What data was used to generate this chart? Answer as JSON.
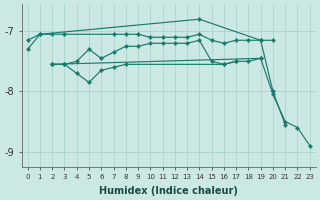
{
  "xlabel": "Humidex (Indice chaleur)",
  "bg_color": "#cce8e4",
  "grid_color": "#aad4cc",
  "line_color": "#1a7a6e",
  "ylim": [
    -9.25,
    -6.55
  ],
  "xlim": [
    -0.5,
    23.5
  ],
  "yticks": [
    -9,
    -8,
    -7
  ],
  "xticks": [
    0,
    1,
    2,
    3,
    4,
    5,
    6,
    7,
    8,
    9,
    10,
    11,
    12,
    13,
    14,
    15,
    16,
    17,
    18,
    19,
    20,
    21,
    22,
    23
  ],
  "series": [
    [
      [
        -7.15,
        0
      ],
      [
        -7.05,
        1
      ],
      [
        -7.05,
        2
      ],
      [
        -7.05,
        3
      ],
      [
        -7.05,
        7
      ],
      [
        -7.05,
        8
      ],
      [
        -7.05,
        9
      ],
      [
        -7.1,
        10
      ],
      [
        -7.1,
        11
      ],
      [
        -7.1,
        12
      ],
      [
        -7.1,
        13
      ],
      [
        -7.05,
        14
      ],
      [
        -7.15,
        15
      ],
      [
        -7.2,
        16
      ],
      [
        -7.15,
        17
      ],
      [
        -7.15,
        18
      ],
      [
        -7.15,
        19
      ],
      [
        -7.15,
        20
      ]
    ],
    [
      [
        -7.3,
        0
      ],
      [
        -7.05,
        1
      ],
      [
        -6.8,
        14
      ],
      [
        -7.15,
        19
      ],
      [
        -8.0,
        20
      ],
      [
        -8.55,
        21
      ]
    ],
    [
      [
        -7.55,
        2
      ],
      [
        -7.55,
        3
      ],
      [
        -7.7,
        4
      ],
      [
        -7.85,
        5
      ],
      [
        -7.65,
        6
      ],
      [
        -7.6,
        7
      ],
      [
        -7.55,
        8
      ],
      [
        -7.55,
        16
      ],
      [
        -7.5,
        17
      ]
    ],
    [
      [
        -7.55,
        2
      ],
      [
        -7.55,
        3
      ],
      [
        -7.5,
        4
      ],
      [
        -7.3,
        5
      ],
      [
        -7.45,
        6
      ],
      [
        -7.35,
        7
      ],
      [
        -7.25,
        8
      ],
      [
        -7.25,
        9
      ],
      [
        -7.2,
        10
      ],
      [
        -7.2,
        11
      ],
      [
        -7.2,
        12
      ],
      [
        -7.2,
        13
      ],
      [
        -7.15,
        14
      ],
      [
        -7.5,
        15
      ],
      [
        -7.55,
        16
      ],
      [
        -7.5,
        17
      ],
      [
        -7.5,
        18
      ],
      [
        -7.45,
        19
      ]
    ],
    [
      [
        -7.55,
        2
      ],
      [
        -7.45,
        19
      ],
      [
        -8.05,
        20
      ],
      [
        -8.5,
        21
      ],
      [
        -8.6,
        22
      ],
      [
        -8.9,
        23
      ]
    ]
  ]
}
